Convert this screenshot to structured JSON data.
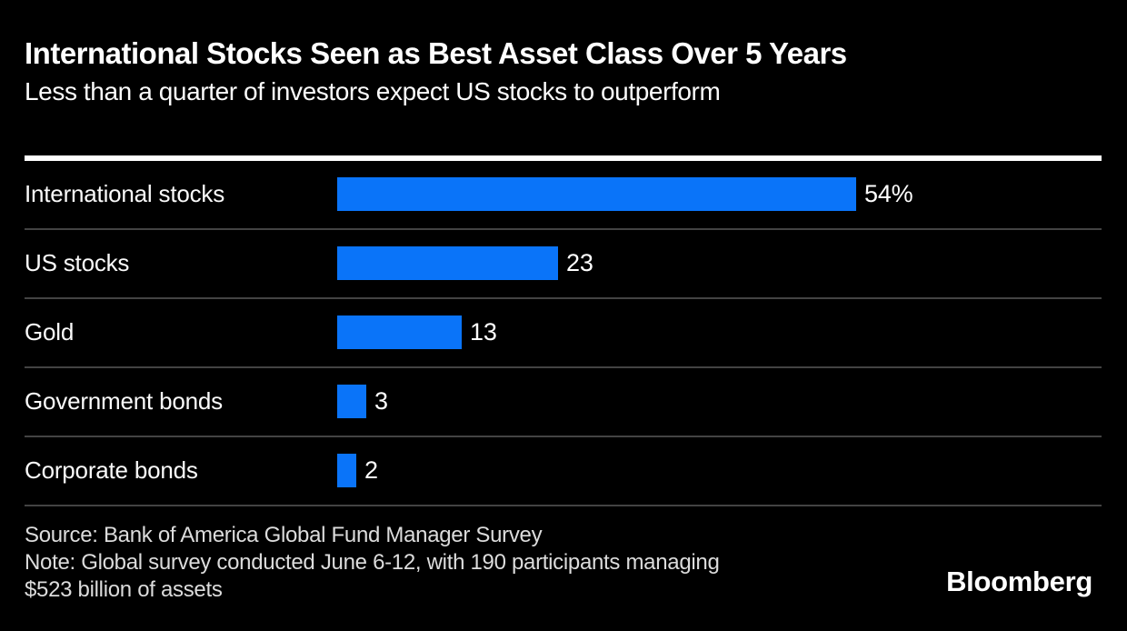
{
  "header": {
    "title": "International Stocks Seen as Best Asset Class Over 5 Years",
    "subtitle": "Less than a quarter of investors expect US stocks to outperform"
  },
  "chart_data": {
    "type": "bar",
    "orientation": "horizontal",
    "title": "International Stocks Seen as Best Asset Class Over 5 Years",
    "subtitle": "Less than a quarter of investors expect US stocks to outperform",
    "categories": [
      "International stocks",
      "US stocks",
      "Gold",
      "Government bonds",
      "Corporate bonds"
    ],
    "values": [
      54,
      23,
      13,
      3,
      2
    ],
    "value_labels": [
      "54%",
      "23",
      "13",
      "3",
      "2"
    ],
    "unit": "percent",
    "xlim": [
      0,
      54
    ],
    "grid": false,
    "legend": false,
    "bar_color": "#0a74f9"
  },
  "footer": {
    "source_line": "Source: Bank of America Global Fund Manager Survey",
    "note_lines": [
      "Note: Global survey conducted June 6-12, with 190 participants managing",
      "$523 billion of assets"
    ],
    "brand": "Bloomberg"
  },
  "colors": {
    "background": "#000000",
    "bar": "#0a74f9",
    "header_rule": "#ffffff",
    "row_separator": "#434343",
    "title_text": "#ffffff",
    "footer_text": "#dcdcdc"
  }
}
